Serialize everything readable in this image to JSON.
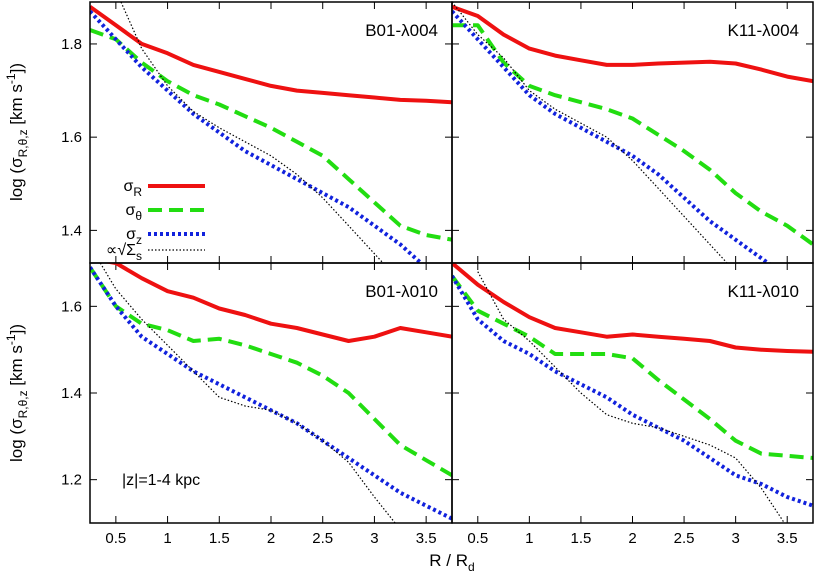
{
  "chart_data": {
    "type": "line",
    "layout": "2x2 grid, shared axes",
    "xlabel": "R / R_d",
    "ylabel": "log (σ_R,θ,z [km s^-1])",
    "xlim": [
      0.25,
      3.75
    ],
    "x_ticks": [
      0.5,
      1,
      1.5,
      2,
      2.5,
      3,
      3.5
    ],
    "x_tick_labels": [
      "0.5",
      "1",
      "1.5",
      "2",
      "2.5",
      "3",
      "3.5"
    ],
    "styles": {
      "sigma_R": {
        "color": "#ee1111",
        "dash": "solid",
        "width": 4
      },
      "sigma_theta": {
        "color": "#22dd11",
        "dash": "dashed",
        "width": 4
      },
      "sigma_z": {
        "color": "#1122dd",
        "dash": "dotted",
        "width": 4
      },
      "sigma_s": {
        "color": "#000000",
        "dash": "fine-dotted",
        "width": 1.2
      }
    },
    "legend": [
      {
        "key": "sigma_R",
        "label": "σ",
        "sub": "R"
      },
      {
        "key": "sigma_theta",
        "label": "σ",
        "sub": "θ"
      },
      {
        "key": "sigma_z",
        "label": "σ",
        "sub": "z"
      },
      {
        "key": "sigma_s",
        "label": "∝√Σ",
        "sub": "s"
      }
    ],
    "legend_position": "left, lower part of top-left panel",
    "annotation": "|z|=1-4 kpc",
    "rows": [
      {
        "ylim": [
          1.33,
          1.89
        ],
        "y_ticks": [
          1.4,
          1.6,
          1.8
        ],
        "y_tick_labels": [
          "1.4",
          "1.6",
          "1.8"
        ]
      },
      {
        "ylim": [
          1.1,
          1.7
        ],
        "y_ticks": [
          1.2,
          1.4,
          1.6
        ],
        "y_tick_labels": [
          "1.2",
          "1.4",
          "1.6"
        ]
      }
    ],
    "panels": [
      {
        "title": "B01-λ004",
        "series": [
          {
            "key": "sigma_R",
            "x": [
              0.25,
              0.5,
              0.75,
              1,
              1.25,
              1.5,
              1.75,
              2,
              2.25,
              2.5,
              2.75,
              3,
              3.25,
              3.5,
              3.75
            ],
            "y": [
              1.88,
              1.84,
              1.8,
              1.78,
              1.755,
              1.74,
              1.725,
              1.71,
              1.7,
              1.695,
              1.69,
              1.685,
              1.68,
              1.678,
              1.675
            ]
          },
          {
            "key": "sigma_theta",
            "x": [
              0.25,
              0.5,
              0.75,
              1,
              1.25,
              1.5,
              1.75,
              2,
              2.25,
              2.5,
              2.75,
              3,
              3.25,
              3.5,
              3.75
            ],
            "y": [
              1.83,
              1.81,
              1.76,
              1.72,
              1.69,
              1.67,
              1.645,
              1.62,
              1.59,
              1.56,
              1.51,
              1.46,
              1.41,
              1.39,
              1.38
            ]
          },
          {
            "key": "sigma_z",
            "x": [
              0.25,
              0.5,
              0.75,
              1,
              1.25,
              1.5,
              1.75,
              2,
              2.25,
              2.5,
              2.75,
              3,
              3.25,
              3.5,
              3.75
            ],
            "y": [
              1.87,
              1.81,
              1.75,
              1.7,
              1.65,
              1.61,
              1.57,
              1.54,
              1.51,
              1.48,
              1.45,
              1.41,
              1.37,
              1.32,
              1.27
            ]
          },
          {
            "key": "sigma_s",
            "x": [
              0.55,
              0.75,
              1,
              1.25,
              1.5,
              1.75,
              2,
              2.25,
              2.5,
              2.75,
              3,
              3.25
            ],
            "y": [
              1.89,
              1.79,
              1.71,
              1.655,
              1.62,
              1.59,
              1.56,
              1.52,
              1.47,
              1.41,
              1.35,
              1.29
            ]
          }
        ]
      },
      {
        "title": "K11-λ004",
        "series": [
          {
            "key": "sigma_R",
            "x": [
              0.25,
              0.5,
              0.75,
              1,
              1.25,
              1.5,
              1.75,
              2,
              2.25,
              2.5,
              2.75,
              3,
              3.25,
              3.5,
              3.75
            ],
            "y": [
              1.88,
              1.86,
              1.82,
              1.79,
              1.775,
              1.765,
              1.755,
              1.755,
              1.758,
              1.76,
              1.762,
              1.758,
              1.745,
              1.73,
              1.72
            ]
          },
          {
            "key": "sigma_theta",
            "x": [
              0.25,
              0.5,
              0.75,
              1,
              1.25,
              1.5,
              1.75,
              2,
              2.25,
              2.5,
              2.75,
              3,
              3.25,
              3.5,
              3.75
            ],
            "y": [
              1.84,
              1.84,
              1.76,
              1.71,
              1.69,
              1.675,
              1.66,
              1.64,
              1.605,
              1.57,
              1.53,
              1.48,
              1.44,
              1.41,
              1.37
            ]
          },
          {
            "key": "sigma_z",
            "x": [
              0.25,
              0.5,
              0.75,
              1,
              1.25,
              1.5,
              1.75,
              2,
              2.25,
              2.5,
              2.75,
              3,
              3.25,
              3.5,
              3.75
            ],
            "y": [
              1.87,
              1.81,
              1.75,
              1.69,
              1.65,
              1.62,
              1.59,
              1.56,
              1.52,
              1.47,
              1.42,
              1.38,
              1.34,
              1.3,
              1.27
            ]
          },
          {
            "key": "sigma_s",
            "x": [
              0.25,
              0.5,
              0.75,
              1,
              1.25,
              1.5,
              1.75,
              2,
              2.25,
              2.5,
              2.75,
              3,
              3.1
            ],
            "y": [
              1.89,
              1.82,
              1.77,
              1.7,
              1.66,
              1.63,
              1.6,
              1.55,
              1.49,
              1.43,
              1.37,
              1.31,
              1.29
            ]
          }
        ]
      },
      {
        "title": "B01-λ010",
        "series": [
          {
            "key": "sigma_R",
            "x": [
              0.25,
              0.5,
              0.75,
              1,
              1.25,
              1.5,
              1.75,
              2,
              2.25,
              2.5,
              2.75,
              3,
              3.25,
              3.5,
              3.75
            ],
            "y": [
              1.71,
              1.7,
              1.665,
              1.635,
              1.62,
              1.595,
              1.58,
              1.56,
              1.55,
              1.535,
              1.52,
              1.53,
              1.55,
              1.54,
              1.53
            ]
          },
          {
            "key": "sigma_theta",
            "x": [
              0.25,
              0.5,
              0.75,
              1,
              1.25,
              1.5,
              1.75,
              2,
              2.25,
              2.5,
              2.75,
              3,
              3.25,
              3.5,
              3.75
            ],
            "y": [
              1.69,
              1.6,
              1.56,
              1.545,
              1.52,
              1.525,
              1.51,
              1.49,
              1.47,
              1.44,
              1.4,
              1.34,
              1.28,
              1.245,
              1.21
            ]
          },
          {
            "key": "sigma_z",
            "x": [
              0.25,
              0.5,
              0.75,
              1,
              1.25,
              1.5,
              1.75,
              2,
              2.25,
              2.5,
              2.75,
              3,
              3.25,
              3.5,
              3.75
            ],
            "y": [
              1.69,
              1.6,
              1.53,
              1.49,
              1.45,
              1.42,
              1.39,
              1.36,
              1.33,
              1.29,
              1.25,
              1.21,
              1.17,
              1.14,
              1.11
            ]
          },
          {
            "key": "sigma_s",
            "x": [
              0.35,
              0.5,
              0.75,
              1,
              1.25,
              1.5,
              1.75,
              2,
              2.25,
              2.5,
              2.75,
              3,
              3.2
            ],
            "y": [
              1.7,
              1.64,
              1.57,
              1.51,
              1.45,
              1.39,
              1.37,
              1.36,
              1.33,
              1.29,
              1.24,
              1.16,
              1.1
            ]
          }
        ]
      },
      {
        "title": "K11-λ010",
        "series": [
          {
            "key": "sigma_R",
            "x": [
              0.25,
              0.5,
              0.75,
              1,
              1.25,
              1.5,
              1.75,
              2,
              2.25,
              2.5,
              2.75,
              3,
              3.25,
              3.5,
              3.75
            ],
            "y": [
              1.7,
              1.65,
              1.61,
              1.575,
              1.55,
              1.54,
              1.53,
              1.535,
              1.53,
              1.525,
              1.52,
              1.505,
              1.5,
              1.497,
              1.495
            ]
          },
          {
            "key": "sigma_theta",
            "x": [
              0.25,
              0.5,
              0.75,
              1,
              1.25,
              1.5,
              1.75,
              2,
              2.25,
              2.5,
              2.75,
              3,
              3.25,
              3.5,
              3.75
            ],
            "y": [
              1.67,
              1.59,
              1.56,
              1.53,
              1.49,
              1.49,
              1.49,
              1.48,
              1.43,
              1.385,
              1.34,
              1.29,
              1.26,
              1.255,
              1.25
            ]
          },
          {
            "key": "sigma_z",
            "x": [
              0.25,
              0.5,
              0.75,
              1,
              1.25,
              1.5,
              1.75,
              2,
              2.25,
              2.5,
              2.75,
              3,
              3.25,
              3.5,
              3.75
            ],
            "y": [
              1.67,
              1.57,
              1.52,
              1.49,
              1.45,
              1.42,
              1.39,
              1.35,
              1.32,
              1.29,
              1.25,
              1.21,
              1.19,
              1.16,
              1.14
            ]
          },
          {
            "key": "sigma_s",
            "x": [
              0.5,
              0.75,
              1,
              1.25,
              1.5,
              1.75,
              2,
              2.25,
              2.5,
              2.75,
              3,
              3.25,
              3.5
            ],
            "y": [
              1.68,
              1.57,
              1.52,
              1.46,
              1.4,
              1.35,
              1.33,
              1.32,
              1.3,
              1.28,
              1.25,
              1.18,
              1.09
            ]
          }
        ]
      }
    ]
  }
}
